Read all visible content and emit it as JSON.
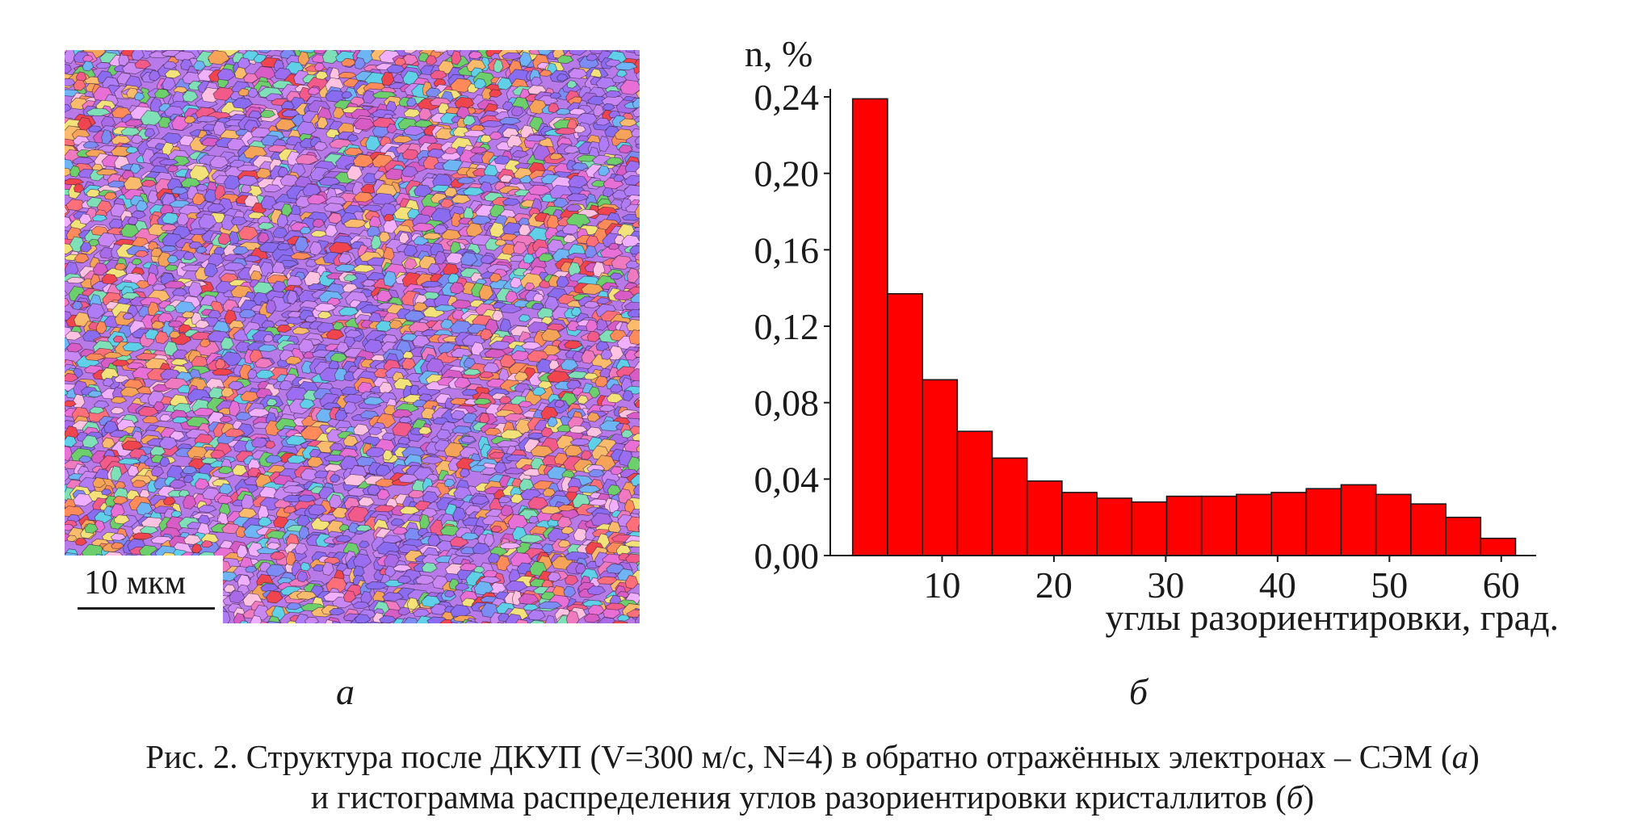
{
  "image_a": {
    "description_icon": "ebsd-orientation-map",
    "scale_bar_label": "10 мкм",
    "palette": [
      "#9b6df0",
      "#b07cf5",
      "#8a6cf0",
      "#c887f2",
      "#e86fd6",
      "#f07ac0",
      "#f25a8a",
      "#ff6f7a",
      "#f0454f",
      "#ff8a5a",
      "#f6a35a",
      "#fbbb6c",
      "#d85cc6",
      "#a96ae8",
      "#7d8cf5",
      "#6fb4f5",
      "#5fd0e8",
      "#7fe0b8",
      "#6ccf6c",
      "#f3e27a",
      "#ffc2e0",
      "#f0b0ff"
    ]
  },
  "panel_labels": {
    "a": "а",
    "b": "б"
  },
  "chart_data": {
    "type": "bar",
    "ylabel": "n, %",
    "xlabel": "углы разориентировки, град.",
    "bar_color": "#ff0000",
    "ylim": [
      0,
      0.24
    ],
    "yticks": [
      "0,00",
      "0,04",
      "0,08",
      "0,12",
      "0,16",
      "0,20",
      "0,24"
    ],
    "ytick_values": [
      0,
      0.04,
      0.08,
      0.12,
      0.16,
      0.2,
      0.24
    ],
    "xlim": [
      0,
      62.4
    ],
    "xticks": [
      "10",
      "20",
      "30",
      "40",
      "50",
      "60"
    ],
    "xtick_values": [
      10,
      20,
      30,
      40,
      50,
      60
    ],
    "bin_width": 3.12,
    "bin_edges_start": 2.0,
    "values": [
      0.239,
      0.137,
      0.092,
      0.065,
      0.051,
      0.039,
      0.033,
      0.03,
      0.028,
      0.031,
      0.031,
      0.032,
      0.033,
      0.035,
      0.037,
      0.032,
      0.027,
      0.02,
      0.009
    ]
  },
  "caption": {
    "line1_prefix": "Рис. 2. Структура после ДКУП (V=300 м/с, N=4) в обратно отражённых электронах – СЭМ (",
    "line1_italic": "а",
    "line1_suffix": ")",
    "line2_prefix": "и гистограмма распределения углов разориентировки кристаллитов (",
    "line2_italic": "б",
    "line2_suffix": ")"
  }
}
